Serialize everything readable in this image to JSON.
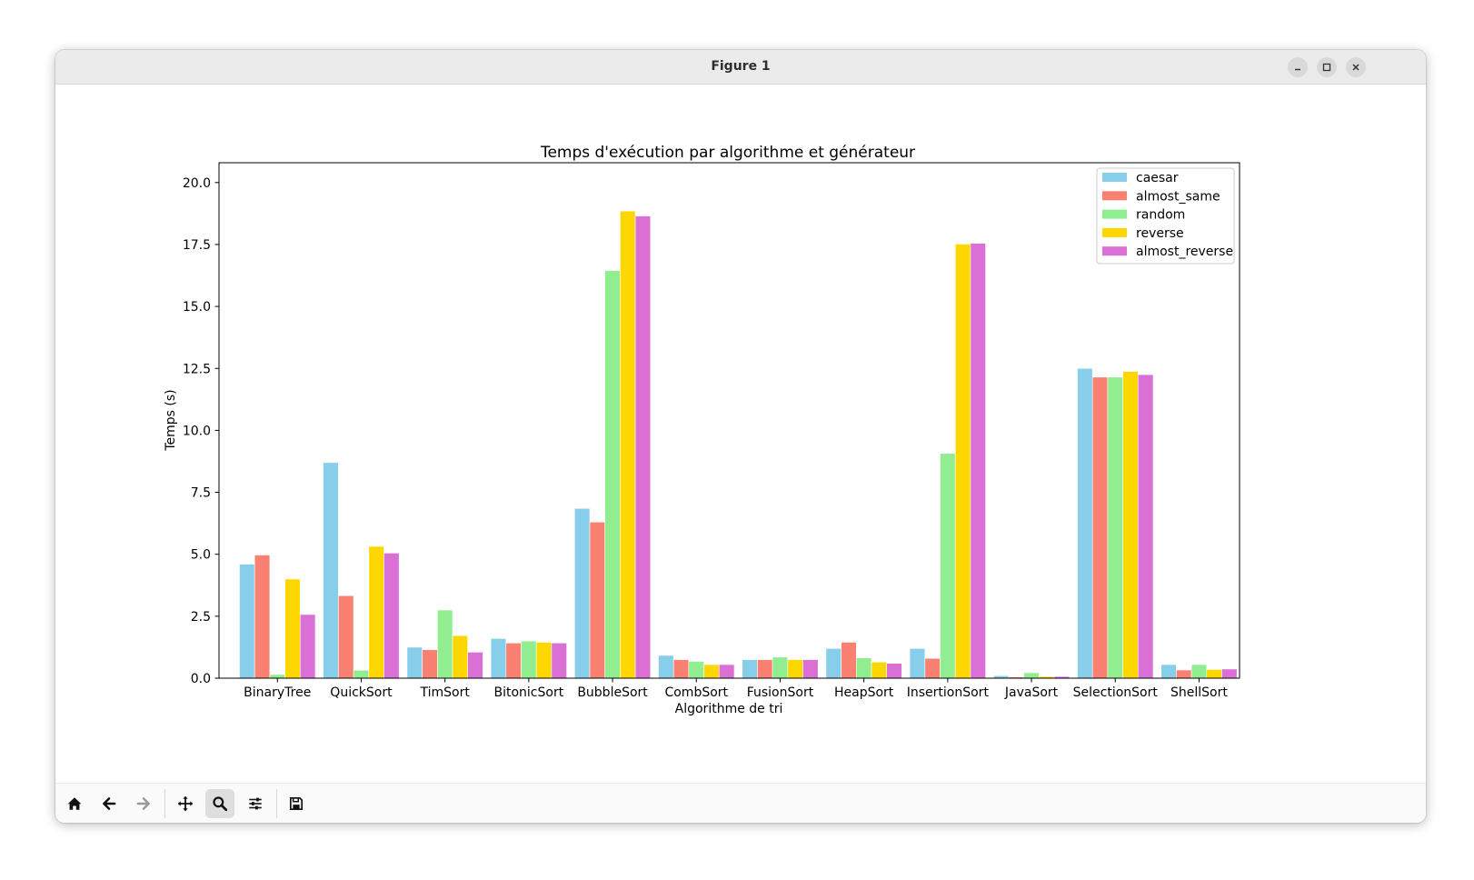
{
  "window": {
    "title": "Figure 1",
    "buttons": [
      "minimize",
      "maximize",
      "close"
    ]
  },
  "toolbar": {
    "tools": [
      {
        "name": "home",
        "icon": "home-icon",
        "active": false
      },
      {
        "name": "back",
        "icon": "arrow-left-icon",
        "active": false
      },
      {
        "name": "forward",
        "icon": "arrow-right-icon",
        "active": false
      },
      {
        "name": "pan",
        "icon": "move-icon",
        "active": false
      },
      {
        "name": "zoom",
        "icon": "magnifier-icon",
        "active": true
      },
      {
        "name": "configure-subplots",
        "icon": "sliders-icon",
        "active": false
      },
      {
        "name": "save",
        "icon": "floppy-disk-icon",
        "active": false
      }
    ]
  },
  "chart_data": {
    "type": "bar",
    "title": "Temps d'exécution par algorithme et générateur",
    "xlabel": "Algorithme de tri",
    "ylabel": "Temps (s)",
    "ylim": [
      0,
      20.8
    ],
    "yticks": [
      "0.0",
      "2.5",
      "5.0",
      "7.5",
      "10.0",
      "12.5",
      "15.0",
      "17.5",
      "20.0"
    ],
    "grid": false,
    "legend_position": "top-right",
    "categories": [
      "BinaryTree",
      "QuickSort",
      "TimSort",
      "BitonicSort",
      "BubbleSort",
      "CombSort",
      "FusionSort",
      "HeapSort",
      "InsertionSort",
      "JavaSort",
      "SelectionSort",
      "ShellSort"
    ],
    "series": [
      {
        "name": "caesar",
        "color": "#87ceeb",
        "values": [
          4.6,
          8.7,
          1.25,
          1.6,
          6.85,
          0.92,
          0.75,
          1.2,
          1.2,
          0.1,
          12.5,
          0.55
        ]
      },
      {
        "name": "almost_same",
        "color": "#fa8072",
        "values": [
          4.97,
          3.33,
          1.15,
          1.42,
          6.3,
          0.75,
          0.75,
          1.45,
          0.8,
          0.05,
          12.15,
          0.33
        ]
      },
      {
        "name": "random",
        "color": "#90ee90",
        "values": [
          0.15,
          0.32,
          2.75,
          1.5,
          16.45,
          0.68,
          0.85,
          0.82,
          9.07,
          0.22,
          12.15,
          0.55
        ]
      },
      {
        "name": "reverse",
        "color": "#ffd700",
        "values": [
          4.0,
          5.32,
          1.72,
          1.45,
          18.85,
          0.55,
          0.75,
          0.65,
          17.52,
          0.07,
          12.38,
          0.35
        ]
      },
      {
        "name": "almost_reverse",
        "color": "#da70d6",
        "values": [
          2.57,
          5.05,
          1.05,
          1.42,
          18.65,
          0.55,
          0.75,
          0.6,
          17.55,
          0.07,
          12.25,
          0.37
        ]
      }
    ]
  }
}
